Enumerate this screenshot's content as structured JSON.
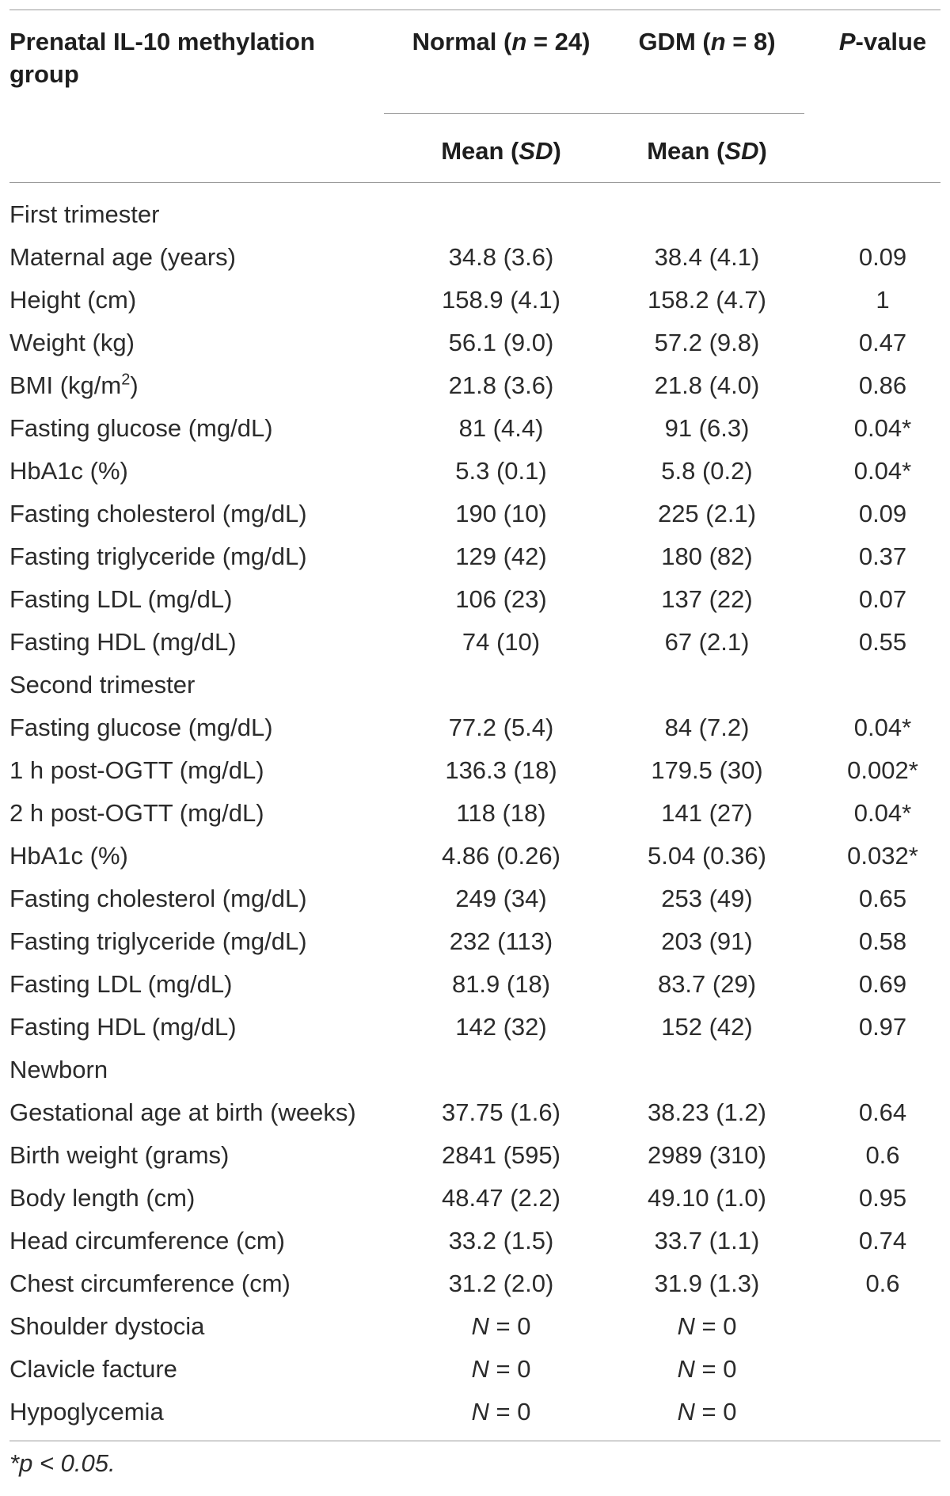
{
  "header": {
    "col1": "Prenatal IL-10 methylation group",
    "col2_name": "Normal",
    "col2_n": "(n = 24)",
    "col3_name": "GDM",
    "col3_n": "(n = 8)",
    "col4": "P-value",
    "sub_normal": "Mean (SD)",
    "sub_gdm": "Mean (SD)"
  },
  "rows": [
    {
      "label": "First trimester",
      "normal": "",
      "gdm": "",
      "p": "",
      "section": true
    },
    {
      "label": "Maternal age (years)",
      "normal": "34.8 (3.6)",
      "gdm": "38.4 (4.1)",
      "p": "0.09"
    },
    {
      "label": "Height (cm)",
      "normal": "158.9 (4.1)",
      "gdm": "158.2 (4.7)",
      "p": "1"
    },
    {
      "label": "Weight (kg)",
      "normal": "56.1 (9.0)",
      "gdm": "57.2 (9.8)",
      "p": "0.47"
    },
    {
      "label": "BMI (kg/m²)",
      "normal": "21.8 (3.6)",
      "gdm": "21.8 (4.0)",
      "p": "0.86"
    },
    {
      "label": "Fasting glucose (mg/dL)",
      "normal": "81 (4.4)",
      "gdm": "91 (6.3)",
      "p": "0.04*"
    },
    {
      "label": "HbA1c (%)",
      "normal": "5.3 (0.1)",
      "gdm": "5.8 (0.2)",
      "p": "0.04*"
    },
    {
      "label": "Fasting cholesterol (mg/dL)",
      "normal": "190 (10)",
      "gdm": "225 (2.1)",
      "p": "0.09"
    },
    {
      "label": "Fasting triglyceride (mg/dL)",
      "normal": "129 (42)",
      "gdm": "180 (82)",
      "p": "0.37"
    },
    {
      "label": "Fasting LDL (mg/dL)",
      "normal": "106 (23)",
      "gdm": "137 (22)",
      "p": "0.07"
    },
    {
      "label": "Fasting HDL (mg/dL)",
      "normal": "74 (10)",
      "gdm": "67 (2.1)",
      "p": "0.55"
    },
    {
      "label": "Second trimester",
      "normal": "",
      "gdm": "",
      "p": "",
      "section": true
    },
    {
      "label": "Fasting glucose (mg/dL)",
      "normal": "77.2 (5.4)",
      "gdm": "84 (7.2)",
      "p": "0.04*"
    },
    {
      "label": "1 h post-OGTT (mg/dL)",
      "normal": "136.3 (18)",
      "gdm": "179.5 (30)",
      "p": "0.002*"
    },
    {
      "label": "2 h post-OGTT (mg/dL)",
      "normal": "118 (18)",
      "gdm": "141 (27)",
      "p": "0.04*"
    },
    {
      "label": "HbA1c (%)",
      "normal": "4.86 (0.26)",
      "gdm": "5.04 (0.36)",
      "p": "0.032*"
    },
    {
      "label": "Fasting cholesterol (mg/dL)",
      "normal": "249 (34)",
      "gdm": "253 (49)",
      "p": "0.65"
    },
    {
      "label": "Fasting triglyceride (mg/dL)",
      "normal": "232 (113)",
      "gdm": "203 (91)",
      "p": "0.58"
    },
    {
      "label": "Fasting LDL (mg/dL)",
      "normal": "81.9 (18)",
      "gdm": "83.7 (29)",
      "p": "0.69"
    },
    {
      "label": "Fasting HDL (mg/dL)",
      "normal": "142 (32)",
      "gdm": "152 (42)",
      "p": "0.97"
    },
    {
      "label": "Newborn",
      "normal": "",
      "gdm": "",
      "p": "",
      "section": true
    },
    {
      "label": "Gestational age at birth (weeks)",
      "normal": "37.75 (1.6)",
      "gdm": "38.23 (1.2)",
      "p": "0.64"
    },
    {
      "label": "Birth weight (grams)",
      "normal": "2841 (595)",
      "gdm": "2989 (310)",
      "p": "0.6"
    },
    {
      "label": "Body length (cm)",
      "normal": "48.47 (2.2)",
      "gdm": "49.10 (1.0)",
      "p": "0.95"
    },
    {
      "label": "Head circumference (cm)",
      "normal": "33.2 (1.5)",
      "gdm": "33.7 (1.1)",
      "p": "0.74"
    },
    {
      "label": "Chest circumference (cm)",
      "normal": "31.2 (2.0)",
      "gdm": "31.9 (1.3)",
      "p": "0.6"
    },
    {
      "label": "Shoulder dystocia",
      "normal": "N = 0",
      "gdm": "N = 0",
      "p": ""
    },
    {
      "label": "Clavicle facture",
      "normal": "N = 0",
      "gdm": "N = 0",
      "p": ""
    },
    {
      "label": "Hypoglycemia",
      "normal": "N = 0",
      "gdm": "N = 0",
      "p": ""
    }
  ],
  "footnote": "*p < 0.05."
}
